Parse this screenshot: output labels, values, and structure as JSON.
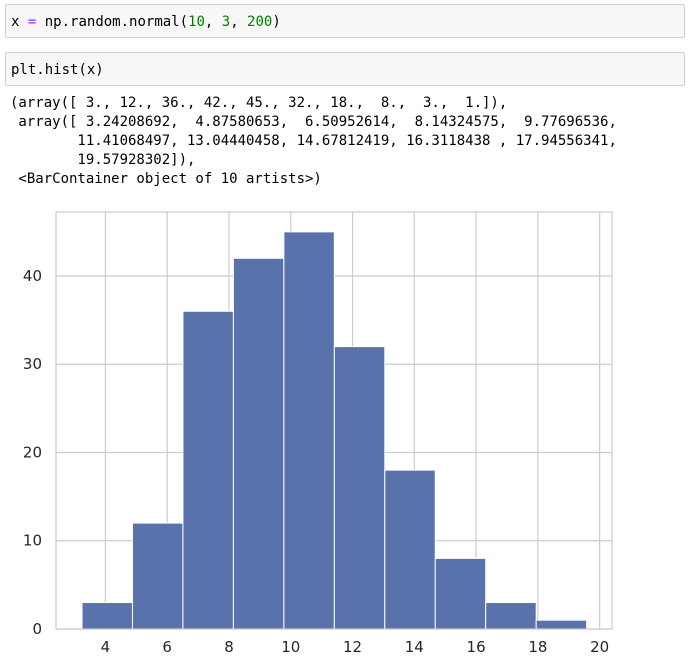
{
  "cells": [
    {
      "tokens": [
        {
          "text": "x",
          "kind": "var"
        },
        {
          "text": " ",
          "kind": "var"
        },
        {
          "text": "=",
          "kind": "op"
        },
        {
          "text": " np.random.normal(",
          "kind": "var"
        },
        {
          "text": "10",
          "kind": "num"
        },
        {
          "text": ", ",
          "kind": "var"
        },
        {
          "text": "3",
          "kind": "num"
        },
        {
          "text": ", ",
          "kind": "var"
        },
        {
          "text": "200",
          "kind": "num"
        },
        {
          "text": ")",
          "kind": "var"
        }
      ]
    },
    {
      "tokens": [
        {
          "text": "plt.hist(x)",
          "kind": "var"
        }
      ]
    }
  ],
  "output": {
    "lines": [
      "(array([ 3., 12., 36., 42., 45., 32., 18.,  8.,  3.,  1.]),",
      " array([ 3.24208692,  4.87580653,  6.50952614,  8.14324575,  9.77696536,",
      "        11.41068497, 13.04440458, 14.67812419, 16.3118438 , 17.94556341,",
      "        19.57928302]),",
      " <BarContainer object of 10 artists>)"
    ]
  },
  "colors": {
    "bar_fill": "#5a72ac",
    "bar_edge": "#ffffff",
    "grid": "#cccccc",
    "frame": "#cccccc",
    "token_op": "#aa22ff",
    "token_num": "#008000"
  },
  "chart_data": {
    "type": "bar",
    "bin_edges": [
      3.24208692,
      4.87580653,
      6.50952614,
      8.14324575,
      9.77696536,
      11.41068497,
      13.04440458,
      14.67812419,
      16.3118438,
      17.94556341,
      19.57928302
    ],
    "values": [
      3,
      12,
      36,
      42,
      45,
      32,
      18,
      8,
      3,
      1
    ],
    "xlim": [
      2.4,
      20.4
    ],
    "ylim": [
      0,
      47.25
    ],
    "xticks": [
      4,
      6,
      8,
      10,
      12,
      14,
      16,
      18,
      20
    ],
    "yticks": [
      0,
      10,
      20,
      30,
      40
    ],
    "grid": true,
    "title": "",
    "xlabel": "",
    "ylabel": ""
  }
}
